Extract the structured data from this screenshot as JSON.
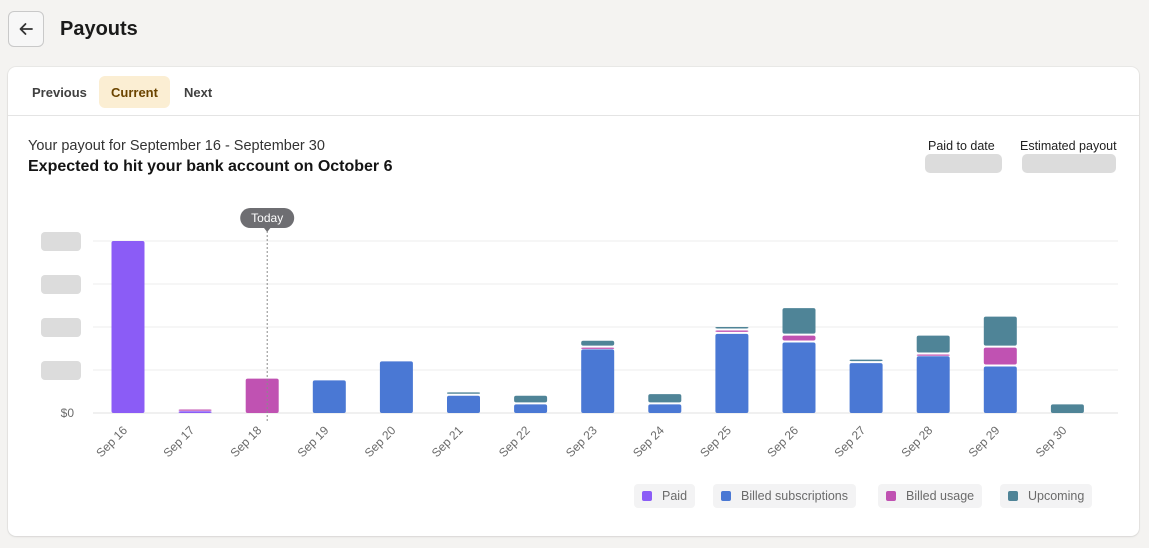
{
  "header": {
    "title": "Payouts"
  },
  "tabs": [
    {
      "label": "Previous",
      "active": false
    },
    {
      "label": "Current",
      "active": true
    },
    {
      "label": "Next",
      "active": false
    }
  ],
  "summary": {
    "range_text": "Your payout for September 16 - September 30",
    "expected_text": "Expected to hit your bank account on October 6",
    "paid_to_date_label": "Paid to date",
    "estimated_payout_label": "Estimated payout"
  },
  "chart_data": {
    "type": "bar",
    "stacked": true,
    "categories": [
      "Sep 16",
      "Sep 17",
      "Sep 18",
      "Sep 19",
      "Sep 20",
      "Sep 21",
      "Sep 22",
      "Sep 23",
      "Sep 24",
      "Sep 25",
      "Sep 26",
      "Sep 27",
      "Sep 28",
      "Sep 29",
      "Sep 30"
    ],
    "series": [
      {
        "name": "Paid",
        "color": "#8b5cf6",
        "values": [
          100,
          1,
          0,
          0,
          0,
          0,
          0,
          0,
          0,
          0,
          0,
          0,
          0,
          0,
          0
        ]
      },
      {
        "name": "Billed subscriptions",
        "color": "#4a78d4",
        "values": [
          0,
          0,
          0,
          19,
          30,
          10,
          5,
          37,
          5,
          46,
          41,
          29,
          33,
          27,
          0
        ]
      },
      {
        "name": "Billed usage",
        "color": "#c052b2",
        "values": [
          0,
          1,
          20,
          0,
          0,
          0,
          0,
          1,
          0,
          2,
          4,
          0,
          1,
          11,
          0
        ]
      },
      {
        "name": "Upcoming",
        "color": "#4f8497",
        "values": [
          0,
          0,
          0,
          0,
          0,
          2,
          5,
          4,
          6,
          2,
          16,
          2,
          11,
          18,
          5
        ]
      }
    ],
    "ylim": [
      0,
      100
    ],
    "y_tick_labels": [
      "$0"
    ],
    "annotation": {
      "label": "Today",
      "category": "Sep 18"
    },
    "legend": "bottom-right",
    "grid": true
  },
  "colors": {
    "accent_tab_bg": "#fbeed3",
    "accent_tab_text": "#6b4400",
    "skeleton": "#dcdcdc",
    "today_pill": "#6e6e72"
  },
  "icons": {
    "back": "arrow-left-icon"
  }
}
